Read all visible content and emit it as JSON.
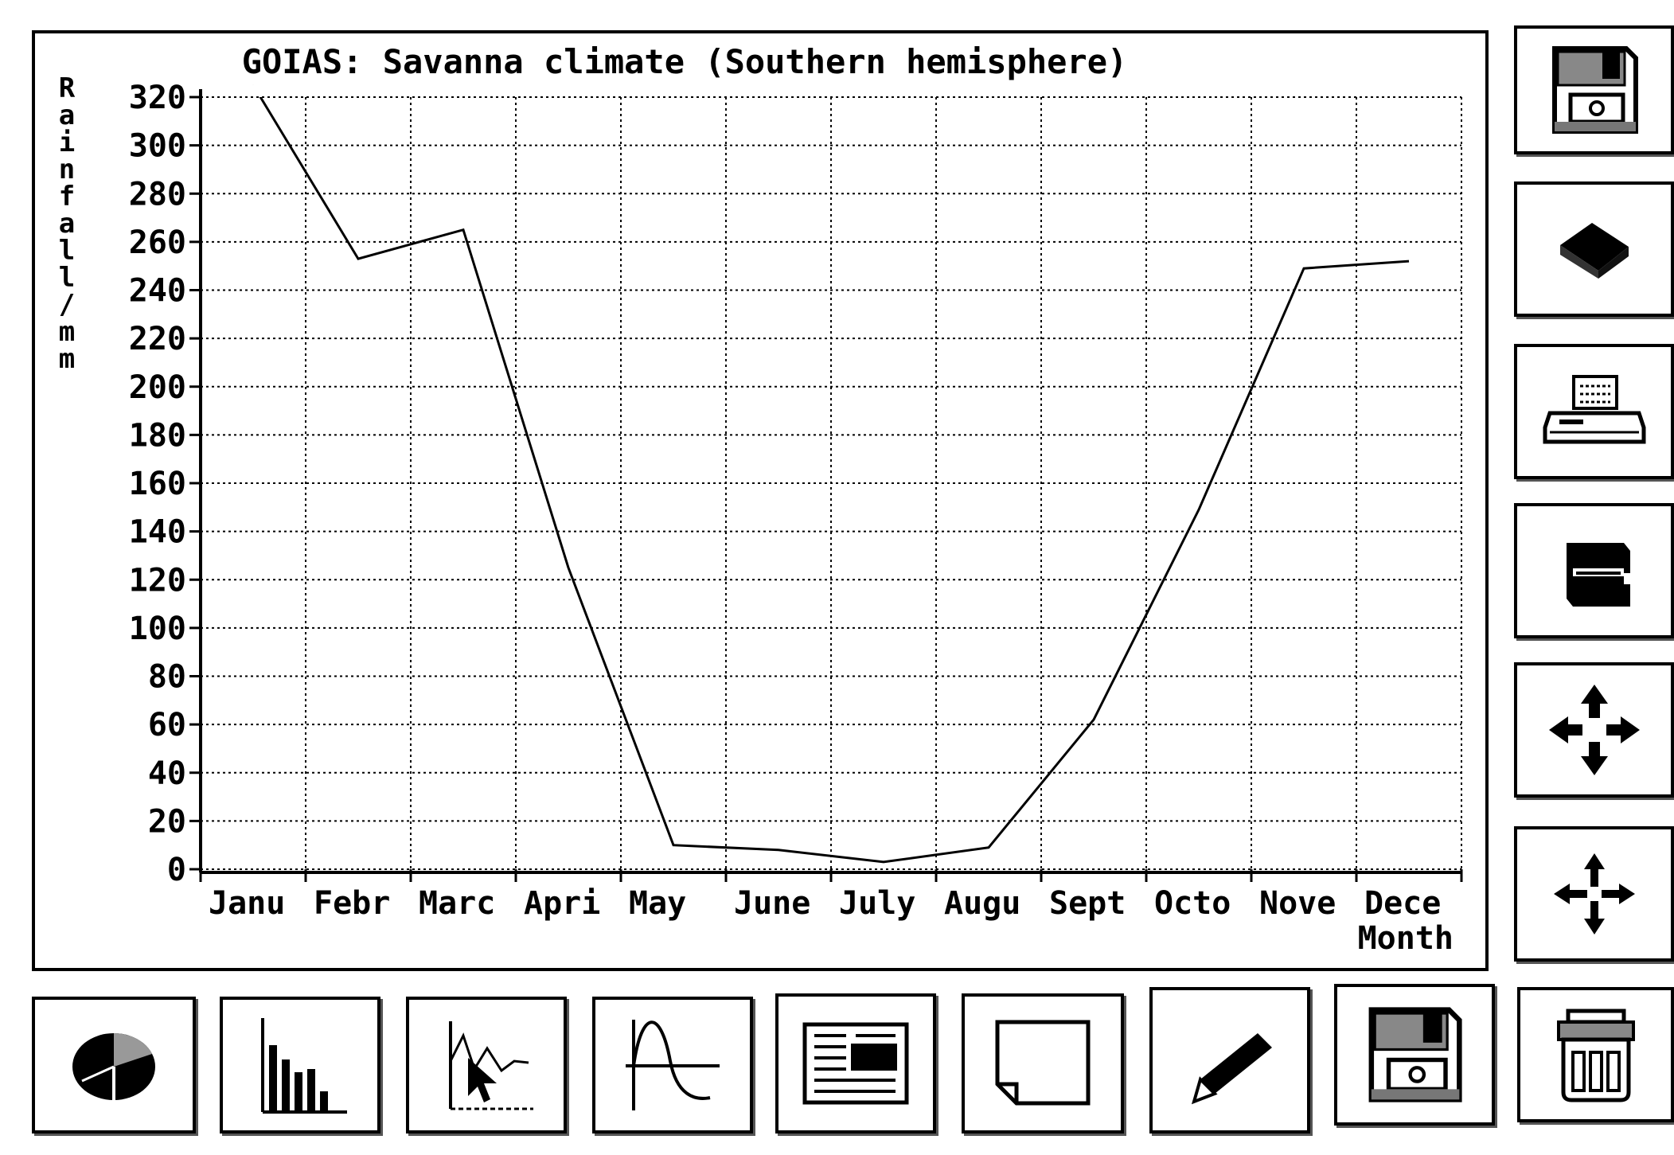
{
  "chart_data": {
    "type": "line",
    "title": "GOIAS: Savanna climate (Southern hemisphere)",
    "ylabel": "Rainfall/mm",
    "xlabel": "Month",
    "categories": [
      "Janu",
      "Febr",
      "Marc",
      "Apri",
      "May",
      "June",
      "July",
      "Augu",
      "Sept",
      "Octo",
      "Nove",
      "Dece"
    ],
    "values": [
      325,
      253,
      265,
      125,
      10,
      8,
      3,
      9,
      62,
      149,
      249,
      252
    ],
    "ylim": [
      0,
      320
    ],
    "yticks": [
      0,
      20,
      40,
      60,
      80,
      100,
      120,
      140,
      160,
      180,
      200,
      220,
      240,
      260,
      280,
      300,
      320
    ],
    "ytick_labels": [
      "0",
      "20",
      "40",
      "60",
      "80",
      "100",
      "120",
      "140",
      "160",
      "180",
      "200",
      "220",
      "240",
      "260",
      "280",
      "300",
      "320"
    ],
    "grid": true,
    "line_color": "#000000"
  },
  "toolbar_right": [
    {
      "name": "save-disk-button",
      "icon": "floppy-disk-icon"
    },
    {
      "name": "open-book-button",
      "icon": "book-icon"
    },
    {
      "name": "print-button",
      "icon": "printer-icon"
    },
    {
      "name": "file-drawer-button",
      "icon": "file-drawer-icon"
    },
    {
      "name": "move-expand-button",
      "icon": "move-arrows-out-icon"
    },
    {
      "name": "move-contract-button",
      "icon": "move-arrows-in-icon"
    },
    {
      "name": "trash-button",
      "icon": "trash-can-icon"
    }
  ],
  "toolbar_bottom": [
    {
      "name": "pie-chart-button",
      "icon": "pie-chart-icon"
    },
    {
      "name": "bar-chart-button",
      "icon": "bar-chart-icon"
    },
    {
      "name": "line-chart-button",
      "icon": "line-chart-cursor-icon"
    },
    {
      "name": "curve-chart-button",
      "icon": "curve-graph-icon"
    },
    {
      "name": "text-page-button",
      "icon": "text-page-icon"
    },
    {
      "name": "blank-page-button",
      "icon": "blank-page-icon"
    },
    {
      "name": "pencil-button",
      "icon": "pencil-icon"
    },
    {
      "name": "save-disk-bottom-button",
      "icon": "floppy-disk-icon"
    }
  ]
}
